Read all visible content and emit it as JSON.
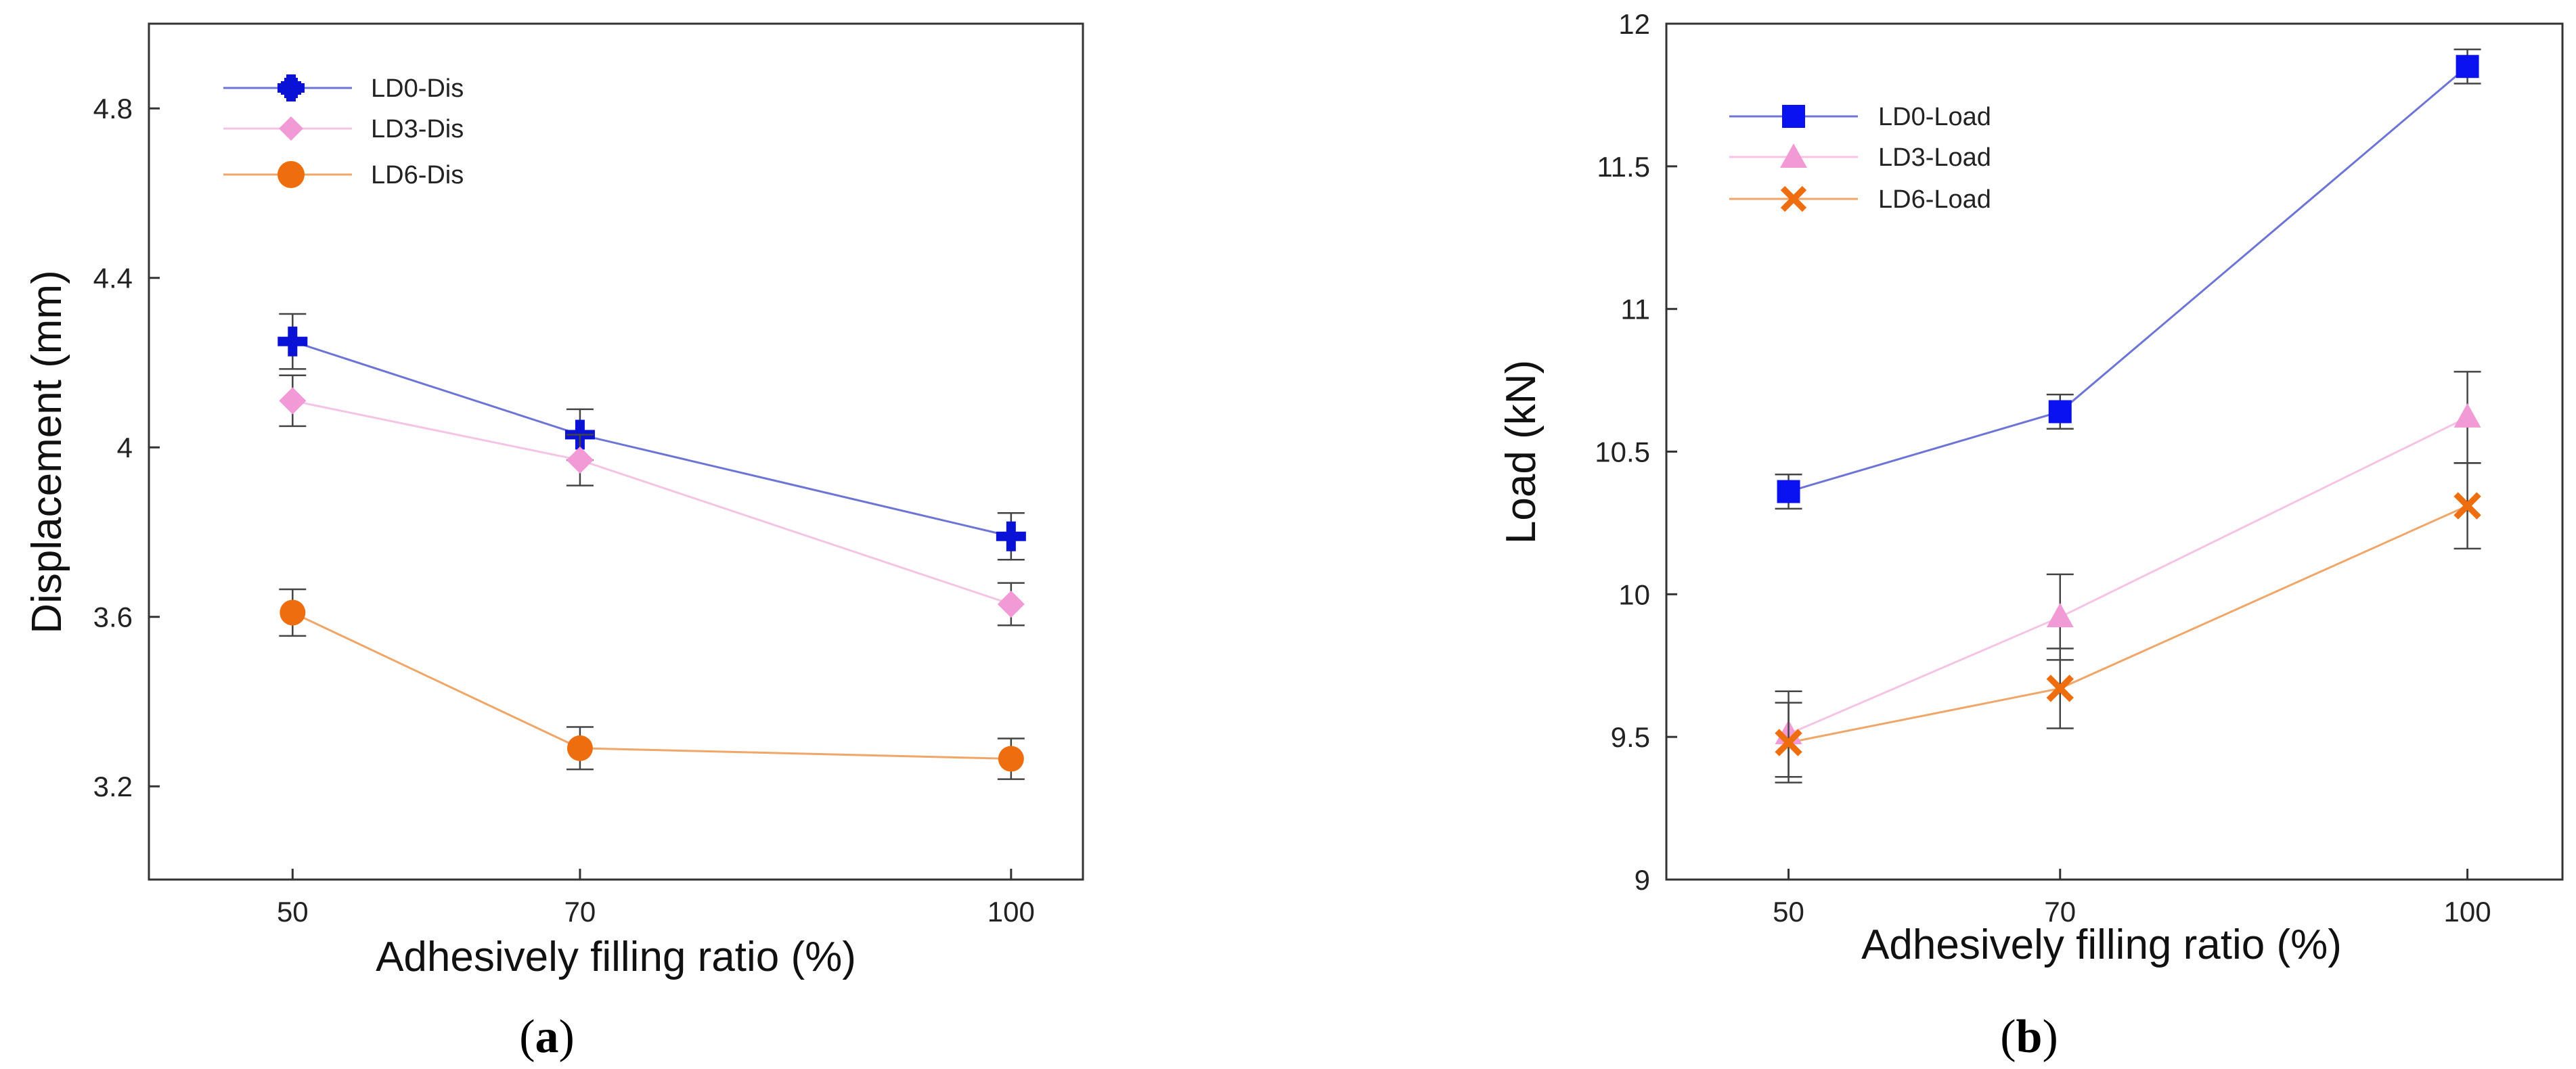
{
  "chart_data": [
    {
      "type": "line",
      "panel_label": "a",
      "xlabel": "Adhesively filling ratio (%)",
      "ylabel": "Displacement (mm)",
      "x": [
        50,
        70,
        100
      ],
      "xlim": [
        40,
        105
      ],
      "ylim": [
        2.98,
        5.0
      ],
      "y_ticks": [
        3.2,
        3.6,
        4.0,
        4.4,
        4.8
      ],
      "y_tick_labels": [
        "3.2",
        "3.6",
        "4",
        "4.4",
        "4.8"
      ],
      "x_tick_labels": [
        "50",
        "70",
        "100"
      ],
      "legend_position": "top-left",
      "series": [
        {
          "name": "LD0-Dis",
          "values": [
            4.25,
            4.03,
            3.79
          ],
          "errors": [
            0.065,
            0.06,
            0.055
          ],
          "color": "#0a12d6",
          "line_color": "#6c74d6",
          "marker": "plus"
        },
        {
          "name": "LD3-Dis",
          "values": [
            4.11,
            3.97,
            3.63
          ],
          "errors": [
            0.06,
            0.06,
            0.05
          ],
          "color": "#f29ad6",
          "line_color": "#f5c4e4",
          "marker": "diamond"
        },
        {
          "name": "LD6-Dis",
          "values": [
            3.61,
            3.29,
            3.265
          ],
          "errors": [
            0.055,
            0.05,
            0.048
          ],
          "color": "#ee6e0f",
          "line_color": "#f0a668",
          "marker": "circle"
        }
      ]
    },
    {
      "type": "line",
      "panel_label": "b",
      "xlabel": "Adhesively filling ratio (%)",
      "ylabel": "Load (kN)",
      "x": [
        50,
        70,
        100
      ],
      "xlim": [
        41,
        107
      ],
      "ylim": [
        9.0,
        12.0
      ],
      "y_ticks": [
        9,
        9.5,
        10,
        10.5,
        11,
        11.5,
        12
      ],
      "y_tick_labels": [
        "9",
        "9.5",
        "10",
        "10.5",
        "11",
        "11.5",
        "12"
      ],
      "x_tick_labels": [
        "50",
        "70",
        "100"
      ],
      "legend_position": "top-left",
      "series": [
        {
          "name": "LD0-Load",
          "values": [
            10.36,
            10.64,
            11.85
          ],
          "errors": [
            0.06,
            0.06,
            0.06
          ],
          "color": "#0a12f0",
          "line_color": "#6c74d6",
          "marker": "square"
        },
        {
          "name": "LD3-Load",
          "values": [
            9.51,
            9.92,
            10.62
          ],
          "errors": [
            0.15,
            0.15,
            0.16
          ],
          "color": "#f29ad6",
          "line_color": "#f5c4e4",
          "marker": "triangle"
        },
        {
          "name": "LD6-Load",
          "values": [
            9.48,
            9.67,
            10.31
          ],
          "errors": [
            0.14,
            0.14,
            0.15
          ],
          "color": "#ee6e0f",
          "line_color": "#f0a668",
          "marker": "cross"
        }
      ]
    }
  ]
}
